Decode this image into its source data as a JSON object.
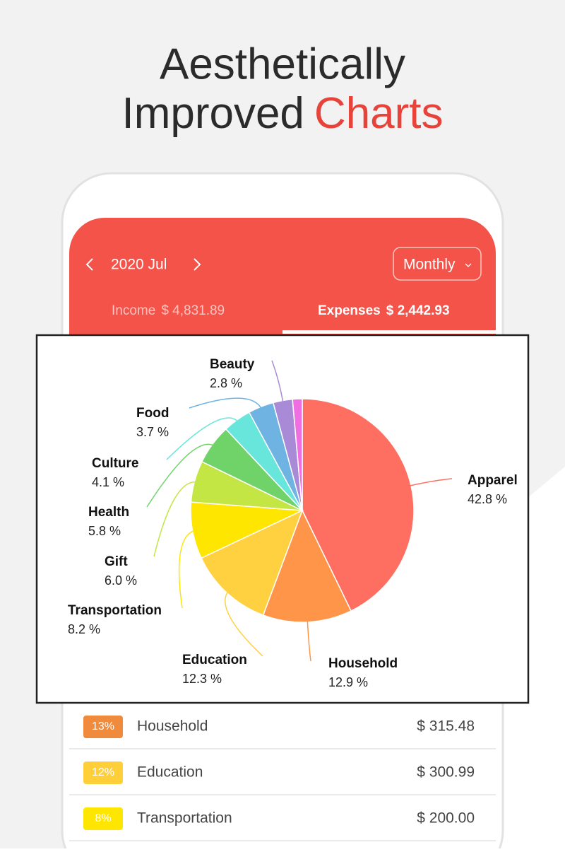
{
  "header": {
    "title_line1": "Aesthetically",
    "title_line2": "Improved",
    "title_highlight": "Charts"
  },
  "app": {
    "month": "2020 Jul",
    "period": "Monthly",
    "income_label": "Income",
    "income": "$ 4,831.89",
    "expenses_label": "Expenses",
    "expenses": "$ 2,442.93"
  },
  "chart_data": {
    "type": "pie",
    "categories": [
      "Apparel",
      "Household",
      "Education",
      "Transportation",
      "Gift",
      "Health",
      "Culture",
      "Food",
      "Beauty",
      null
    ],
    "values": [
      42.8,
      12.9,
      12.3,
      8.2,
      6.0,
      5.8,
      4.1,
      3.7,
      2.8,
      1.4
    ],
    "value_labels": [
      "42.8 %",
      "12.9 %",
      "12.3 %",
      "8.2 %",
      "6.0 %",
      "5.8 %",
      "4.1 %",
      "3.7 %",
      "2.8 %",
      null
    ],
    "colors": [
      "#ff6f61",
      "#ff9548",
      "#ffd03f",
      "#ffe600",
      "#c3e645",
      "#6fd36a",
      "#68e6dc",
      "#6fb3e2",
      "#a98ad6",
      "#ef6fe3"
    ]
  },
  "list": [
    {
      "percent": "13%",
      "name": "Household",
      "amount": "$ 315.48",
      "color": "#f08a3c"
    },
    {
      "percent": "12%",
      "name": "Education",
      "amount": "$ 300.99",
      "color": "#ffcf3a"
    },
    {
      "percent": "8%",
      "name": "Transportation",
      "amount": "$ 200.00",
      "color": "#ffe600"
    }
  ]
}
